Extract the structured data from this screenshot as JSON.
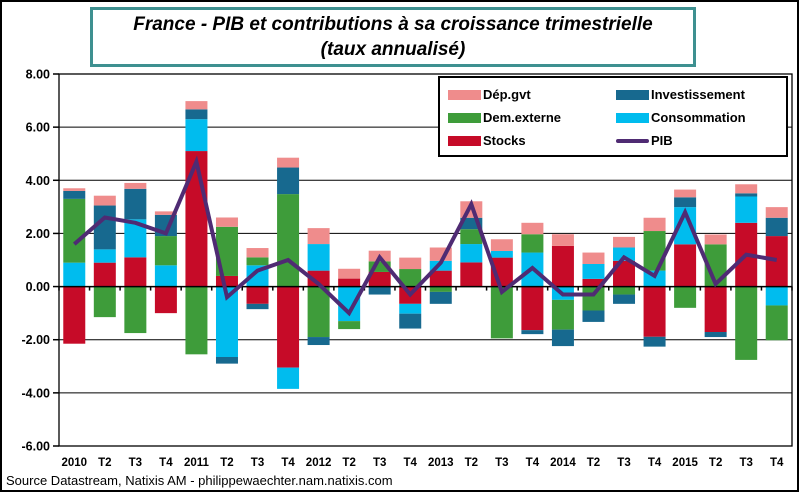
{
  "title": {
    "line1": "France - PIB et contributions à sa croissance trimestrielle",
    "line2": "(taux annualisé)"
  },
  "source_note": "Source Datastream, Natixis AM - philippewaechter.nam.natixis.com",
  "colors": {
    "dep_gvt": "#EF8C8C",
    "investissement": "#17698F",
    "dem_externe": "#3E9C3A",
    "consommation": "#00BCEE",
    "stocks": "#C60B28",
    "pib_line": "#4F2B73",
    "title_border": "#3E9090",
    "axis": "#000000",
    "background": "#FFFFFF"
  },
  "legend": {
    "columns": [
      [
        {
          "label": "Dép.gvt",
          "swatch": "rect",
          "color": "#EF8C8C"
        },
        {
          "label": "Dem.externe",
          "swatch": "rect",
          "color": "#3E9C3A"
        },
        {
          "label": "Stocks",
          "swatch": "rect",
          "color": "#C60B28"
        }
      ],
      [
        {
          "label": "Investissement",
          "swatch": "rect",
          "color": "#17698F"
        },
        {
          "label": "Consommation",
          "swatch": "rect",
          "color": "#00BCEE"
        },
        {
          "label": "PIB",
          "swatch": "line",
          "color": "#4F2B73"
        }
      ]
    ]
  },
  "chart_data": {
    "type": "bar",
    "subtype": "stacked-bars-with-line-overlay",
    "title": "France - PIB et contributions à sa croissance trimestrielle (taux annualisé)",
    "xlabel": "",
    "ylabel": "",
    "ylim": [
      -6,
      8
    ],
    "ytick_step": 2,
    "grid": true,
    "legend_position": "top-right",
    "yticks": [
      {
        "v": 8,
        "label": "8.00"
      },
      {
        "v": 6,
        "label": "6.00"
      },
      {
        "v": 4,
        "label": "4.00"
      },
      {
        "v": 2,
        "label": "2.00"
      },
      {
        "v": 0,
        "label": "0.00"
      },
      {
        "v": -2,
        "label": "-2.00"
      },
      {
        "v": -4,
        "label": "-4.00"
      },
      {
        "v": -6,
        "label": "-6.00"
      }
    ],
    "categories": [
      "2010",
      "T2",
      "T3",
      "T4",
      "2011",
      "T2",
      "T3",
      "T4",
      "2012",
      "T2",
      "T3",
      "T4",
      "2013",
      "T2",
      "T3",
      "T4",
      "2014",
      "T2",
      "T3",
      "T4",
      "2015",
      "T2",
      "T3",
      "T4"
    ],
    "stack_order": [
      "Stocks",
      "Consommation",
      "Dem.externe",
      "Investissement",
      "Dép.gvt"
    ],
    "series": [
      {
        "name": "Dép.gvt",
        "color": "#EF8C8C",
        "values": [
          0.1,
          0.37,
          0.22,
          0.13,
          0.31,
          0.35,
          0.35,
          0.37,
          0.6,
          0.37,
          0.4,
          0.43,
          0.5,
          0.62,
          0.44,
          0.43,
          0.44,
          0.43,
          0.4,
          0.5,
          0.29,
          0.37,
          0.34,
          0.4
        ]
      },
      {
        "name": "Investissement",
        "color": "#17698F",
        "values": [
          0.3,
          1.65,
          1.15,
          0.8,
          0.37,
          -0.25,
          -0.2,
          1.0,
          -0.3,
          0.0,
          -0.3,
          -0.56,
          -0.45,
          0.43,
          0.0,
          -0.15,
          -0.62,
          -0.43,
          -0.35,
          -0.37,
          0.37,
          -0.19,
          0.12,
          0.69
        ]
      },
      {
        "name": "Dem.externe",
        "color": "#3E9C3A",
        "values": [
          2.4,
          -1.15,
          -1.75,
          1.1,
          -2.55,
          1.85,
          0.3,
          3.48,
          -1.9,
          -0.3,
          0.4,
          0.66,
          -0.2,
          0.56,
          -1.95,
          0.69,
          -1.12,
          -0.9,
          -0.3,
          1.49,
          -0.8,
          1.59,
          -2.76,
          -1.31
        ]
      },
      {
        "name": "Consommation",
        "color": "#00BCEE",
        "values": [
          0.9,
          0.5,
          1.43,
          0.8,
          1.2,
          -2.65,
          0.8,
          -0.8,
          1.0,
          -1.3,
          0.0,
          -0.37,
          0.37,
          0.69,
          0.25,
          1.28,
          -0.5,
          0.56,
          0.5,
          0.6,
          1.4,
          0.0,
          0.99,
          -0.71
        ]
      },
      {
        "name": "Stocks",
        "color": "#C60B28",
        "values": [
          -2.15,
          0.9,
          1.1,
          -1.0,
          5.1,
          0.4,
          -0.65,
          -3.05,
          0.6,
          0.3,
          0.55,
          -0.65,
          0.6,
          0.91,
          1.09,
          -1.64,
          1.53,
          0.29,
          0.97,
          -1.89,
          1.59,
          -1.71,
          2.4,
          1.9
        ]
      }
    ],
    "line_series": {
      "name": "PIB",
      "color": "#4F2B73",
      "values": [
        1.6,
        2.6,
        2.4,
        2.0,
        4.7,
        -0.4,
        0.6,
        1.0,
        0.1,
        -1.0,
        1.1,
        -0.3,
        0.9,
        3.1,
        -0.2,
        0.7,
        -0.3,
        -0.3,
        1.1,
        0.4,
        2.8,
        0.1,
        1.2,
        1.0
      ]
    }
  }
}
